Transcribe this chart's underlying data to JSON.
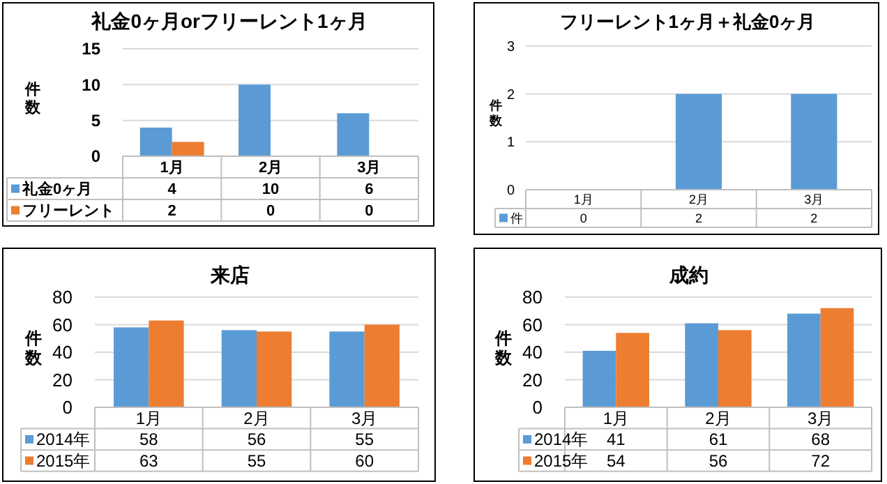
{
  "chart_data": [
    {
      "type": "bar",
      "title": "礼金0ヶ月orフリーレント1ヶ月",
      "ylabel": "件数",
      "categories": [
        "1月",
        "2月",
        "3月"
      ],
      "series": [
        {
          "name": "礼金0ヶ月",
          "color": "#5b9bd5",
          "values": [
            4,
            10,
            6
          ]
        },
        {
          "name": "フリーレント",
          "color": "#ed7d31",
          "values": [
            2,
            0,
            0
          ]
        }
      ],
      "ylim": [
        0,
        15
      ],
      "yticks": [
        0,
        5,
        10,
        15
      ],
      "grid": "y",
      "legend": "bottom",
      "data_labels": true
    },
    {
      "type": "bar",
      "title": "フリーレント1ヶ月＋礼金0ヶ月",
      "ylabel": "件数",
      "categories": [
        "1月",
        "2月",
        "3月"
      ],
      "series": [
        {
          "name": "件",
          "color": "#5b9bd5",
          "values": [
            0,
            2,
            2
          ]
        }
      ],
      "ylim": [
        0,
        3
      ],
      "yticks": [
        0,
        1,
        2,
        3
      ],
      "grid": "y",
      "legend": "bottom",
      "data_labels": true
    },
    {
      "type": "bar",
      "title": "来店",
      "ylabel": "件数",
      "categories": [
        "1月",
        "2月",
        "3月"
      ],
      "series": [
        {
          "name": "2014年",
          "color": "#5b9bd5",
          "values": [
            58,
            56,
            55
          ]
        },
        {
          "name": "2015年",
          "color": "#ed7d31",
          "values": [
            63,
            55,
            60
          ]
        }
      ],
      "ylim": [
        0,
        80
      ],
      "yticks": [
        0,
        20,
        40,
        60,
        80
      ],
      "grid": "y",
      "legend": "bottom",
      "data_labels": true
    },
    {
      "type": "bar",
      "title": "成約",
      "ylabel": "件数",
      "categories": [
        "1月",
        "2月",
        "3月"
      ],
      "series": [
        {
          "name": "2014年",
          "color": "#5b9bd5",
          "values": [
            41,
            61,
            68
          ]
        },
        {
          "name": "2015年",
          "color": "#ed7d31",
          "values": [
            54,
            56,
            72
          ]
        }
      ],
      "ylim": [
        0,
        80
      ],
      "yticks": [
        0,
        20,
        40,
        60,
        80
      ],
      "grid": "y",
      "legend": "bottom",
      "data_labels": true
    }
  ]
}
